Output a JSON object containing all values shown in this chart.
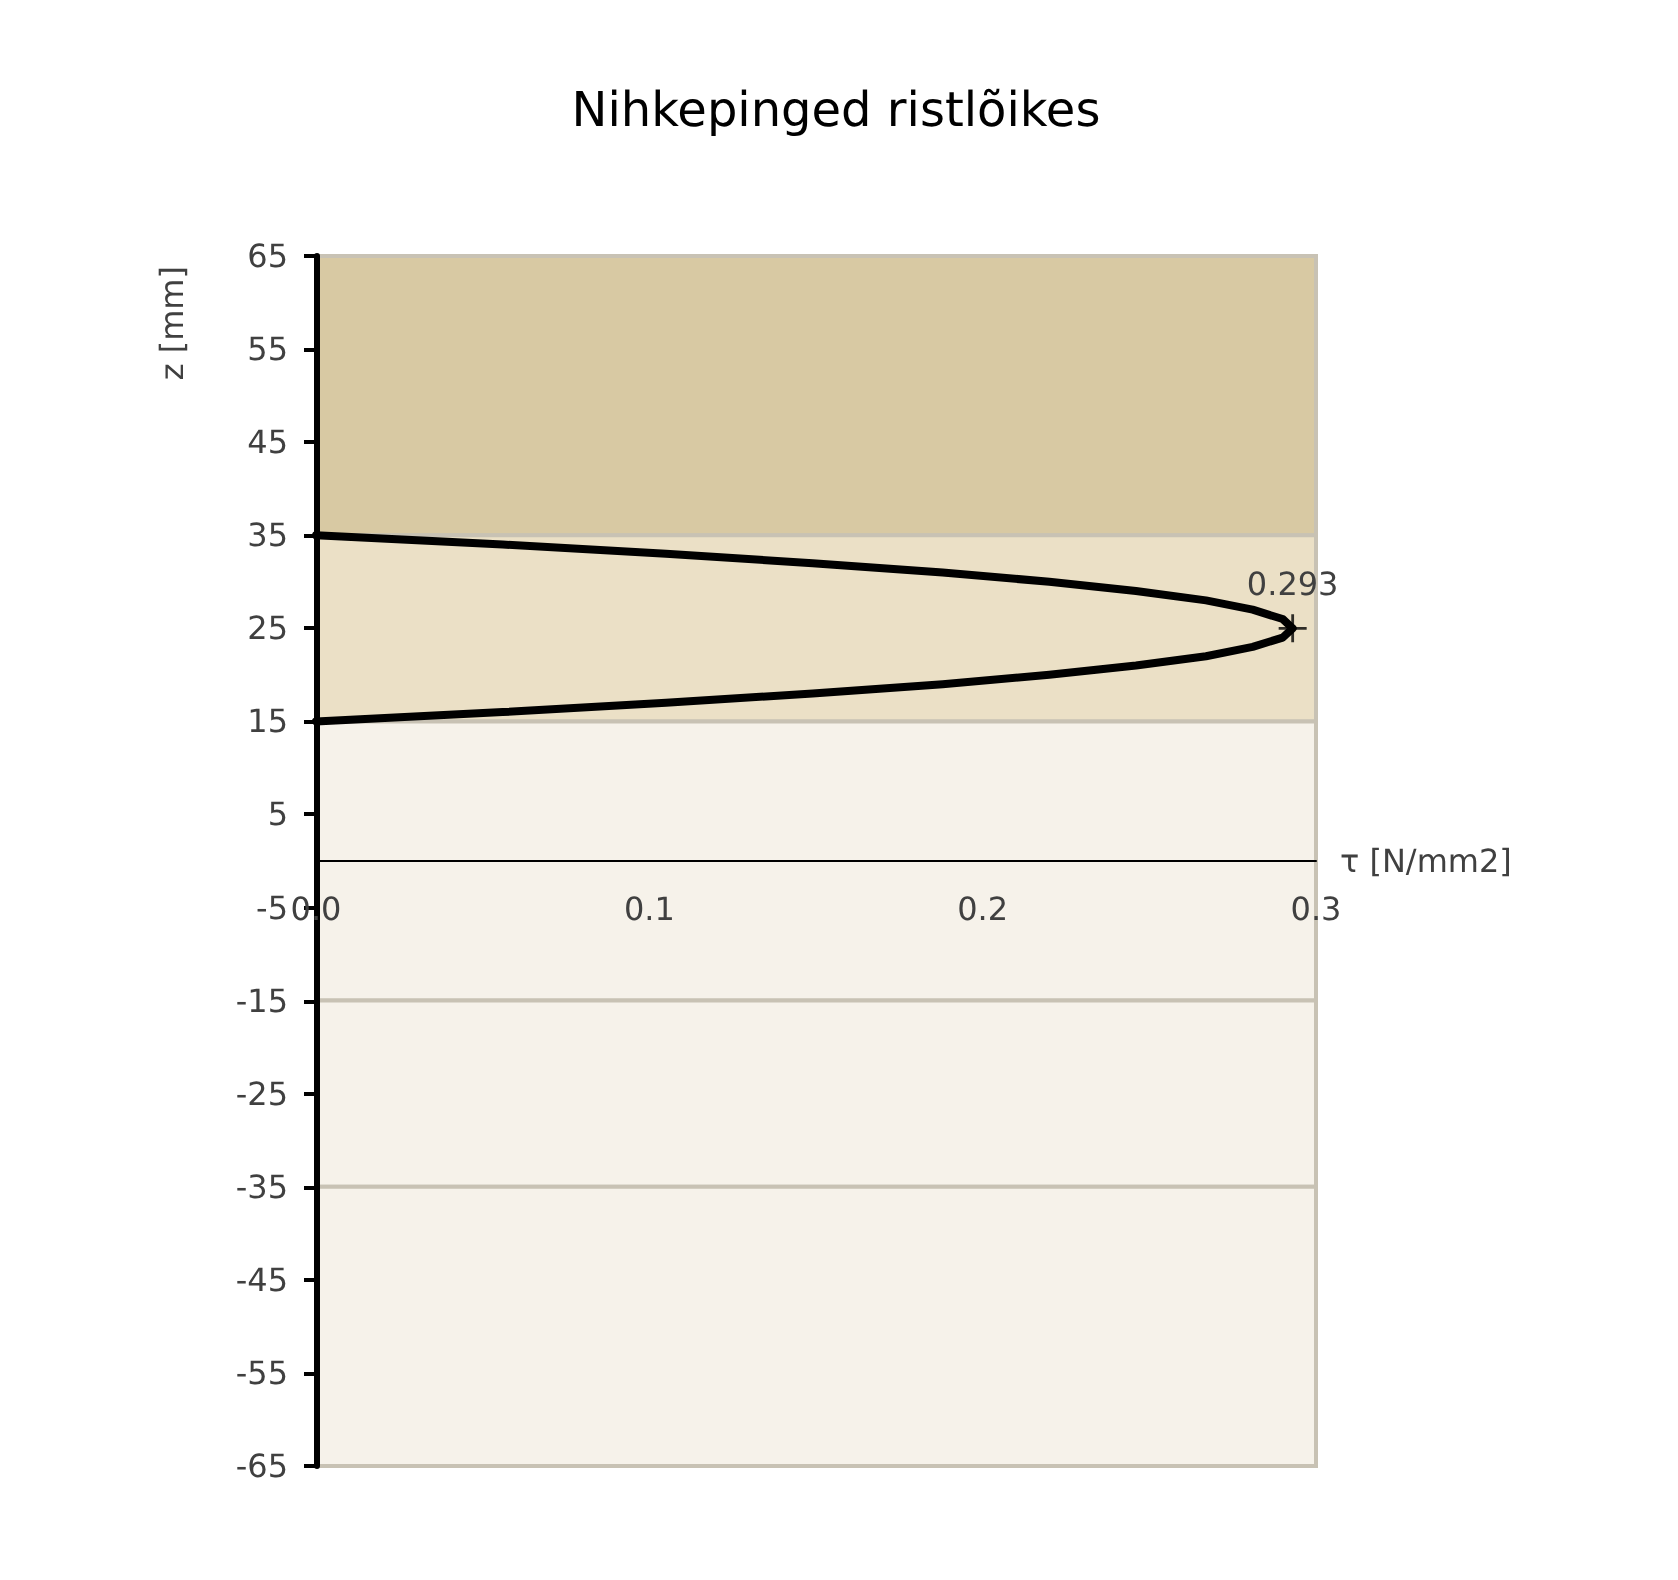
{
  "chart_data": {
    "type": "line",
    "title": "Nihkepinged ristlõikes",
    "xlabel": "τ [N/mm2]",
    "ylabel": "z [mm]",
    "xlim": [
      0,
      0.3
    ],
    "xticks": [
      {
        "value": 0,
        "label": "0.0"
      },
      0.1,
      0.2,
      0.3
    ],
    "ylim": [
      -65,
      65
    ],
    "yticks": [
      -65,
      -55,
      -45,
      -35,
      -25,
      -15,
      -5,
      5,
      15,
      25,
      35,
      45,
      55,
      65
    ],
    "marker": "none",
    "line_style": "solid",
    "annotations": [
      {
        "text": "0.293",
        "x": 0.293,
        "y": 25
      }
    ],
    "series": [
      {
        "color": "#000000",
        "x": [
          0,
          0.056,
          0.105,
          0.149,
          0.188,
          0.22,
          0.246,
          0.267,
          0.281,
          0.29,
          0.293,
          0.29,
          0.281,
          0.267,
          0.246,
          0.22,
          0.188,
          0.149,
          0.105,
          0.056,
          0
        ],
        "values": [
          15,
          16,
          17,
          18,
          19,
          20,
          21,
          22,
          23,
          24,
          25,
          26,
          27,
          28,
          29,
          30,
          31,
          32,
          33,
          34,
          35
        ]
      },
      {
        "type": "scatter",
        "marker": "cross",
        "color": "#000000",
        "x": [
          0.293
        ],
        "values": [
          25
        ]
      }
    ],
    "bands": [
      {
        "axis": "y",
        "from": 35,
        "to": 65,
        "color": "#d8c9a3"
      },
      {
        "axis": "y",
        "from": 15,
        "to": 35,
        "color": "#ebe0c6"
      },
      {
        "axis": "y",
        "from": -15,
        "to": 15,
        "color": "#f6f2ea"
      },
      {
        "axis": "y",
        "from": -35,
        "to": -15,
        "color": "#f6f2ea"
      },
      {
        "axis": "y",
        "from": -65,
        "to": -35,
        "color": "#f6f2ea"
      }
    ]
  }
}
